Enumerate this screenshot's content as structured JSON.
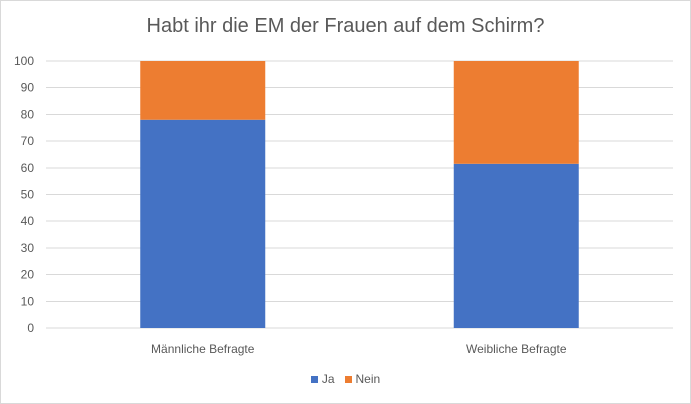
{
  "chart_data": {
    "type": "bar",
    "stacked": true,
    "title": "Habt ihr die EM der Frauen auf dem Schirm?",
    "categories": [
      "Männliche Befragte",
      "Weibliche Befragte"
    ],
    "series": [
      {
        "name": "Ja",
        "values": [
          78,
          61.5
        ],
        "color": "#4472c4"
      },
      {
        "name": "Nein",
        "values": [
          22,
          38.5
        ],
        "color": "#ed7d31"
      }
    ],
    "ylim": [
      0,
      100
    ],
    "yticks": [
      "0",
      "10",
      "20",
      "30",
      "40",
      "50",
      "60",
      "70",
      "80",
      "90",
      "100"
    ],
    "grid": true,
    "gridline_color": "#d9d9d9",
    "legend": "bottom"
  }
}
